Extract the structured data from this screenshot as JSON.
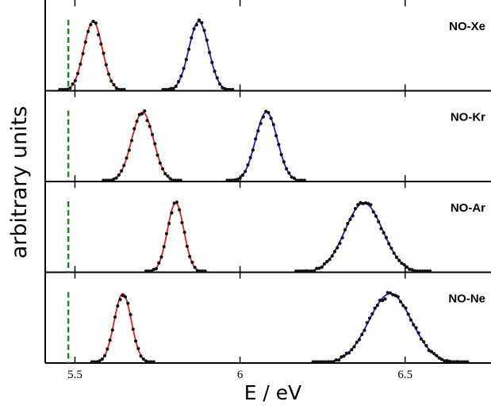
{
  "chart_data": {
    "type": "line",
    "xlabel": "E / eV",
    "ylabel": "arbitrary units",
    "xlim": [
      5.41,
      6.76
    ],
    "xticks": [
      5.5,
      6,
      6.5
    ],
    "xtick_labels": [
      "5.5",
      "6",
      "6.5"
    ],
    "colors": {
      "fit_1": "#dd2222",
      "fit_2": "#1f1fbf",
      "marker": "#1a8a1a",
      "points": "#111111"
    },
    "marker_line_x": 5.48,
    "panels": [
      {
        "label": "NO-Xe",
        "peaks": [
          {
            "center": 5.555,
            "sigma": 0.028,
            "fit": "fit_1"
          },
          {
            "center": 5.875,
            "sigma": 0.03,
            "fit": "fit_2"
          }
        ]
      },
      {
        "label": "NO-Kr",
        "peaks": [
          {
            "center": 5.705,
            "sigma": 0.033,
            "fit": "fit_1"
          },
          {
            "center": 6.08,
            "sigma": 0.033,
            "fit": "fit_2"
          }
        ]
      },
      {
        "label": "NO-Ar",
        "peaks": [
          {
            "center": 5.805,
            "sigma": 0.025,
            "fit": "fit_1"
          },
          {
            "center": 6.375,
            "sigma": 0.057,
            "fit": "fit_2"
          }
        ]
      },
      {
        "label": "NO-Ne",
        "peaks": [
          {
            "center": 5.645,
            "sigma": 0.026,
            "fit": "fit_1"
          },
          {
            "center": 6.455,
            "sigma": 0.065,
            "fit": "fit_2"
          }
        ]
      }
    ]
  }
}
